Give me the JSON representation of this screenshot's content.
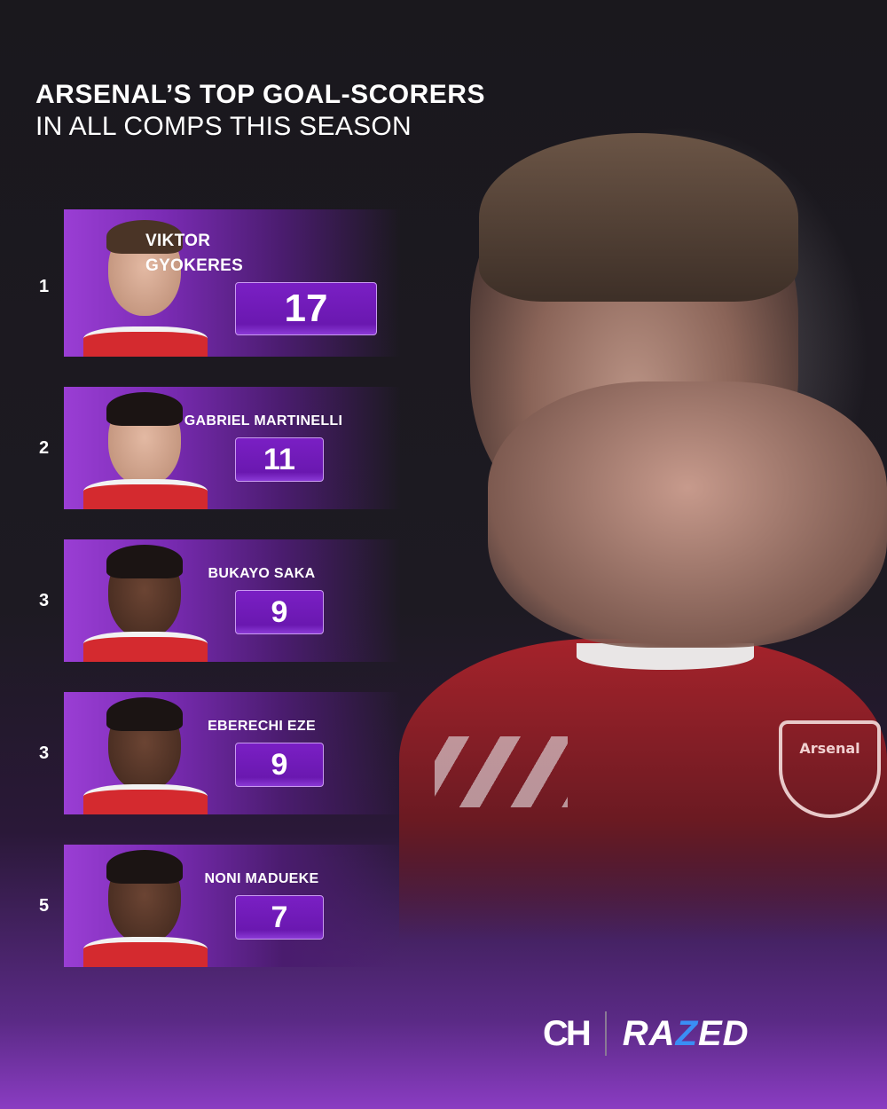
{
  "title": {
    "line1": "ARSENAL’S TOP GOAL-SCORERS",
    "line2": "IN ALL COMPS THIS SEASON"
  },
  "players": [
    {
      "rank": "1",
      "name_line1": "VIKTOR",
      "name_line2": "GYOKERES",
      "goals": "17"
    },
    {
      "rank": "2",
      "name_line1": "GABRIEL MARTINELLI",
      "goals": "11"
    },
    {
      "rank": "3",
      "name_line1": "BUKAYO SAKA",
      "goals": "9"
    },
    {
      "rank": "3",
      "name_line1": "EBERECHI EZE",
      "goals": "9"
    },
    {
      "rank": "5",
      "name_line1": "NONI MADUEKE",
      "goals": "7"
    }
  ],
  "hero": {
    "crest_text": "Arsenal"
  },
  "logos": {
    "ch": "CH",
    "razed_pre": "RA",
    "razed_z": "Z",
    "razed_post": "ED"
  },
  "colors": {
    "accent": "#7a1fc4",
    "brand_blue": "#3a8ef5",
    "kit_red": "#d42a2f"
  }
}
